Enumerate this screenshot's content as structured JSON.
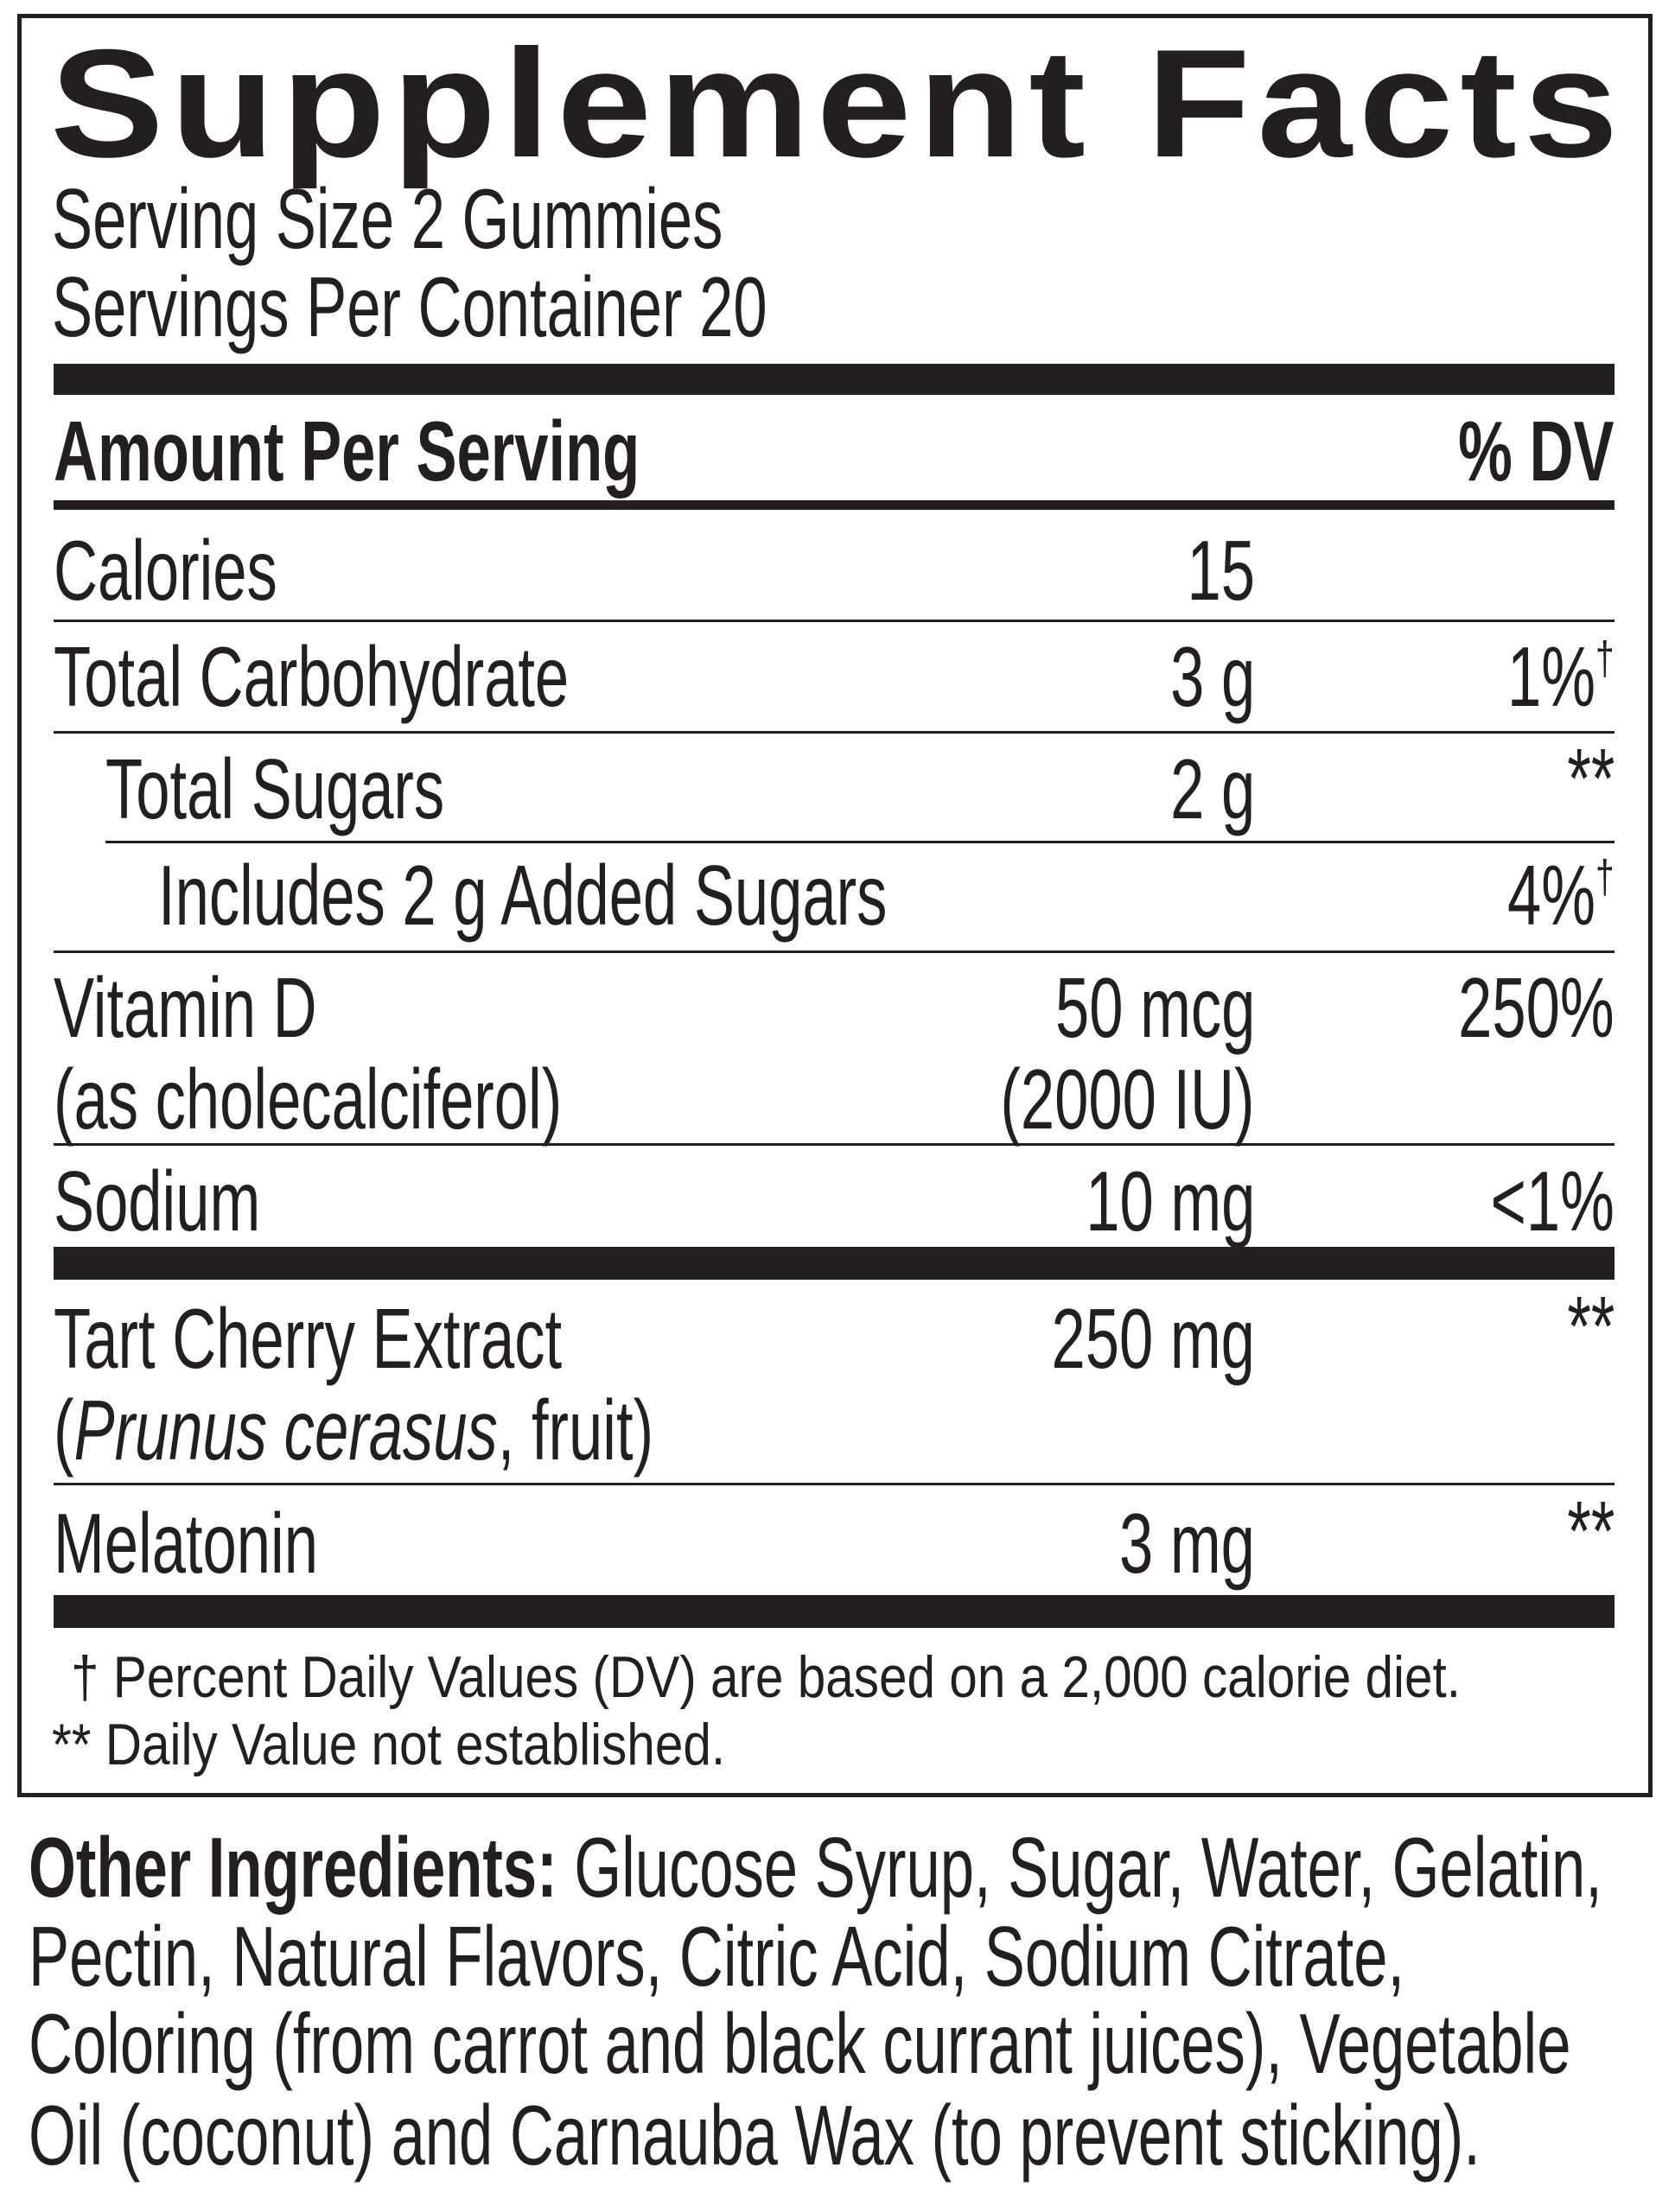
{
  "title": "Supplement Facts",
  "serving_size": "Serving Size 2 Gummies",
  "servings_per_container": "Servings Per Container 20",
  "header": {
    "amount": "Amount Per Serving",
    "dv": "% DV"
  },
  "rows": [
    {
      "name": "Calories",
      "amount": "15",
      "dv": ""
    },
    {
      "name": "Total Carbohydrate",
      "amount": "3 g",
      "dv": "1%",
      "dv_mark": "†"
    },
    {
      "name": "Total Sugars",
      "amount": "2 g",
      "dv": "**"
    },
    {
      "name": "Includes 2 g Added Sugars",
      "amount": "",
      "dv": "4%",
      "dv_mark": "†"
    },
    {
      "name": "Vitamin D",
      "sub": "(as cholecalciferol)",
      "amount": "50 mcg",
      "amount2": "(2000 IU)",
      "dv": "250%"
    },
    {
      "name": "Sodium",
      "amount": "10 mg",
      "dv": "<1%"
    },
    {
      "name": "Tart Cherry Extract",
      "sub_open": "(",
      "sub_italic": "Prunus cerasus",
      "sub_rest": ", fruit)",
      "amount": "250 mg",
      "dv": "**"
    },
    {
      "name": "Melatonin",
      "amount": "3 mg",
      "dv": "**"
    }
  ],
  "footnotes": [
    "† Percent Daily Values (DV) are based on a 2,000 calorie diet.",
    "** Daily Value not established."
  ],
  "other_ingredients": {
    "label": "Other Ingredients:",
    "lines": [
      " Glucose Syrup, Sugar, Water, Gelatin,",
      "Pectin, Natural Flavors, Citric Acid, Sodium Citrate,",
      "Coloring (from carrot and black currant juices), Vegetable",
      "Oil (coconut) and Carnauba Wax (to prevent sticking)."
    ]
  }
}
